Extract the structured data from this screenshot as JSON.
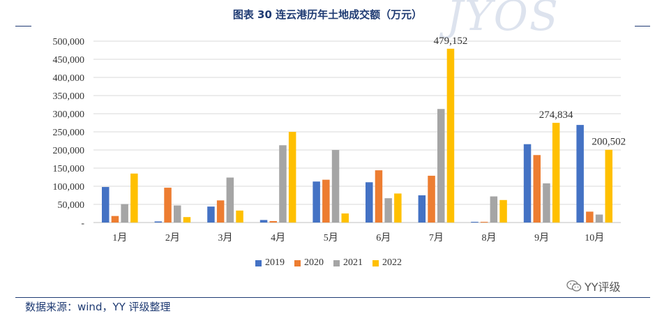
{
  "title": "图表 30 连云港历年土地成交额（万元）",
  "watermark": "JYOS",
  "source": "数据来源：wind，YY 评级整理",
  "brand": "YY评级",
  "colors": {
    "2019": "#4472c4",
    "2020": "#ed7d31",
    "2021": "#a5a5a5",
    "2022": "#ffc000",
    "accent": "#1f3b73"
  },
  "chart_data": {
    "type": "bar",
    "title": "图表 30 连云港历年土地成交额（万元）",
    "xlabel": "",
    "ylabel": "",
    "ylim": [
      0,
      500000
    ],
    "yticks": [
      0,
      50000,
      100000,
      150000,
      200000,
      250000,
      300000,
      350000,
      400000,
      450000,
      500000
    ],
    "ytick_labels": [
      "-",
      "50,000",
      "100,000",
      "150,000",
      "200,000",
      "250,000",
      "300,000",
      "350,000",
      "400,000",
      "450,000",
      "500,000"
    ],
    "categories": [
      "1月",
      "2月",
      "3月",
      "4月",
      "5月",
      "6月",
      "7月",
      "8月",
      "9月",
      "10月"
    ],
    "series": [
      {
        "name": "2019",
        "color": "#4472c4",
        "values": [
          98000,
          3000,
          44000,
          7000,
          113000,
          111000,
          75000,
          2000,
          216000,
          269000
        ]
      },
      {
        "name": "2020",
        "color": "#ed7d31",
        "values": [
          18000,
          96000,
          61000,
          4000,
          118000,
          144000,
          129000,
          2000,
          186000,
          30000
        ]
      },
      {
        "name": "2021",
        "color": "#a5a5a5",
        "values": [
          51000,
          47000,
          124000,
          213000,
          200000,
          67000,
          313000,
          72000,
          108000,
          22000
        ]
      },
      {
        "name": "2022",
        "color": "#ffc000",
        "values": [
          135000,
          15000,
          33000,
          250000,
          25000,
          80000,
          479152,
          62000,
          274834,
          200502
        ]
      }
    ],
    "data_labels": [
      {
        "category": "7月",
        "series": "2022",
        "text": "479,152"
      },
      {
        "category": "9月",
        "series": "2022",
        "text": "274,834"
      },
      {
        "category": "10月",
        "series": "2022",
        "text": "200,502"
      }
    ],
    "legend": "bottom",
    "grid": true
  }
}
